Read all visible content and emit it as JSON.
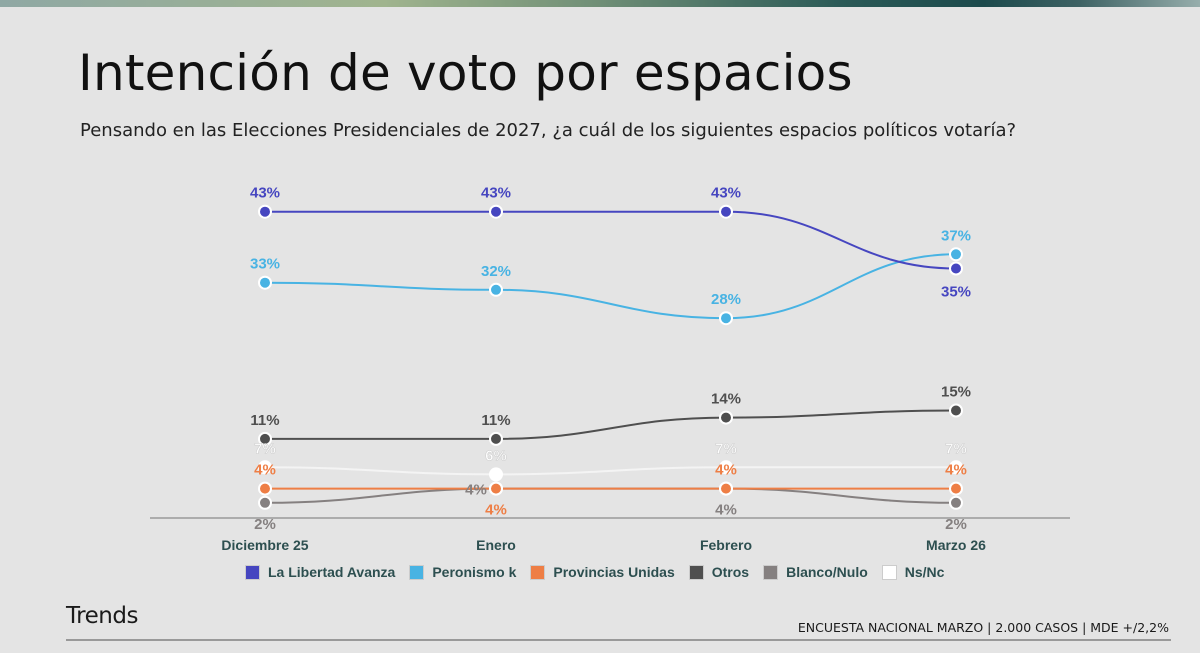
{
  "header": {
    "title": "Intención de voto por espacios",
    "subtitle": "Pensando en las Elecciones Presidenciales de 2027, ¿a cuál de los siguientes espacios políticos votaría?"
  },
  "footer": {
    "brand": "Trends",
    "note": "ENCUESTA NACIONAL MARZO | 2.000 CASOS | MDE +/2,2%"
  },
  "chart_data": {
    "type": "line",
    "title": "Intención de voto por espacios",
    "xlabel": "",
    "ylabel": "",
    "ylim": [
      0,
      45
    ],
    "grid": false,
    "legend_position": "bottom",
    "categories": [
      "Diciembre 25",
      "Enero",
      "Febrero",
      "Marzo 26"
    ],
    "series": [
      {
        "name": "La Libertad Avanza",
        "color": "#4646c0",
        "values": [
          43,
          43,
          43,
          35
        ],
        "labels": [
          "43%",
          "43%",
          "43%",
          "35%"
        ]
      },
      {
        "name": "Peronismo k",
        "color": "#48b3e3",
        "values": [
          33,
          32,
          28,
          37
        ],
        "labels": [
          "33%",
          "32%",
          "28%",
          "37%"
        ]
      },
      {
        "name": "Provincias Unidas",
        "color": "#ee7e45",
        "values": [
          4,
          4,
          4,
          4
        ],
        "labels": [
          "4%",
          "4%",
          "4%",
          "4%"
        ]
      },
      {
        "name": "Otros",
        "color": "#4f4f4f",
        "values": [
          11,
          11,
          14,
          15
        ],
        "labels": [
          "11%",
          "11%",
          "14%",
          "15%"
        ]
      },
      {
        "name": "Blanco/Nulo",
        "color": "#858080",
        "values": [
          2,
          4,
          4,
          2
        ],
        "labels": [
          "2%",
          "4%",
          "4%",
          "2%"
        ]
      },
      {
        "name": "Ns/Nc",
        "color": "#ffffff",
        "values": [
          7,
          6,
          7,
          7
        ],
        "labels": [
          "7%",
          "6%",
          "7%",
          "7%"
        ]
      }
    ]
  }
}
